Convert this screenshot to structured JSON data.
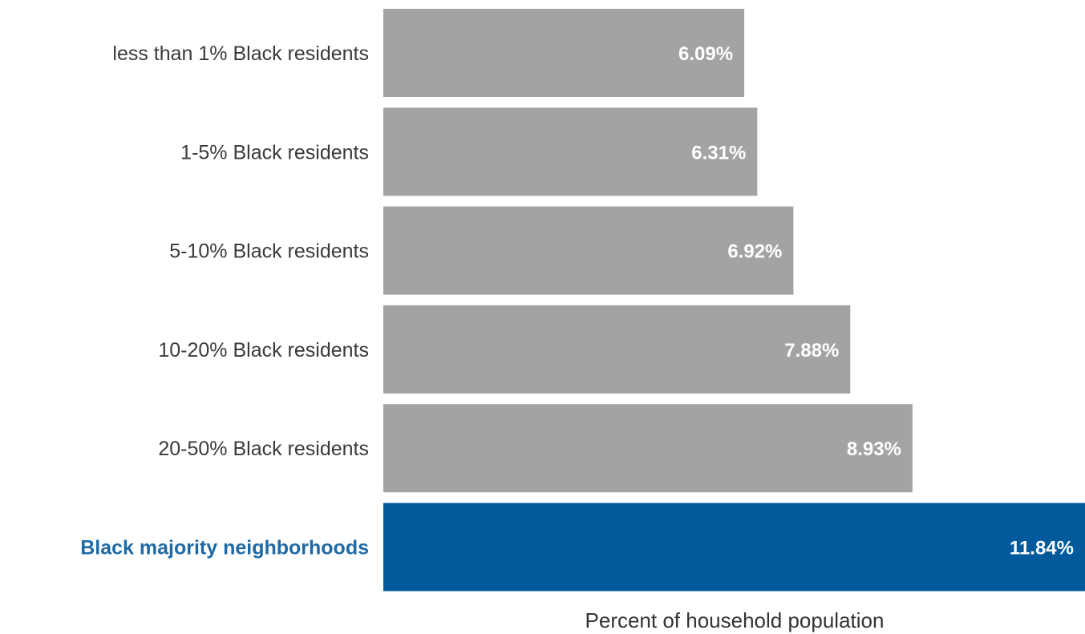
{
  "chart_data": {
    "type": "bar",
    "orientation": "horizontal",
    "categories": [
      "less than 1% Black residents",
      "1-5% Black residents",
      "5-10% Black residents",
      "10-20% Black residents",
      "20-50% Black residents",
      "Black majority neighborhoods"
    ],
    "values": [
      6.09,
      6.31,
      6.92,
      7.88,
      8.93,
      11.84
    ],
    "value_labels": [
      "6.09%",
      "6.31%",
      "6.92%",
      "7.88%",
      "8.93%",
      "11.84%"
    ],
    "highlight_index": 5,
    "xlabel": "Percent of household population",
    "ylabel": "",
    "xlim": [
      0,
      11.84
    ],
    "grid": false,
    "legend": "none",
    "colors": {
      "bar": "#a3a3a3",
      "highlight_bar": "#005a9c",
      "label": "#3a3a3a",
      "highlight_label": "#1f6aa5",
      "value_text": "#ffffff"
    }
  }
}
